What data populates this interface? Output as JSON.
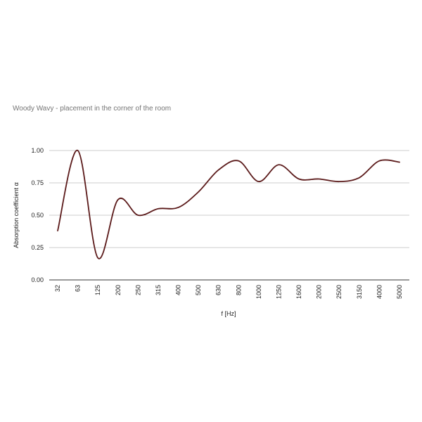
{
  "chart_data": {
    "type": "line",
    "title": "Woody Wavy - placement in the corner of the room",
    "xlabel": "f [Hz]",
    "ylabel": "Absorption coefficient α",
    "categories": [
      "32",
      "63",
      "125",
      "200",
      "250",
      "315",
      "400",
      "500",
      "630",
      "800",
      "1000",
      "1250",
      "1600",
      "2000",
      "2500",
      "3150",
      "4000",
      "5000"
    ],
    "series": [
      {
        "values": [
          0.38,
          1.0,
          0.17,
          0.62,
          0.5,
          0.55,
          0.56,
          0.68,
          0.85,
          0.92,
          0.76,
          0.89,
          0.78,
          0.78,
          0.76,
          0.79,
          0.92,
          0.91
        ],
        "color": "#5b1a1a"
      }
    ],
    "ylim": [
      0,
      1
    ],
    "yticks": [
      "0.00",
      "0.25",
      "0.50",
      "0.75",
      "1.00"
    ],
    "grid": true,
    "smooth": true
  }
}
